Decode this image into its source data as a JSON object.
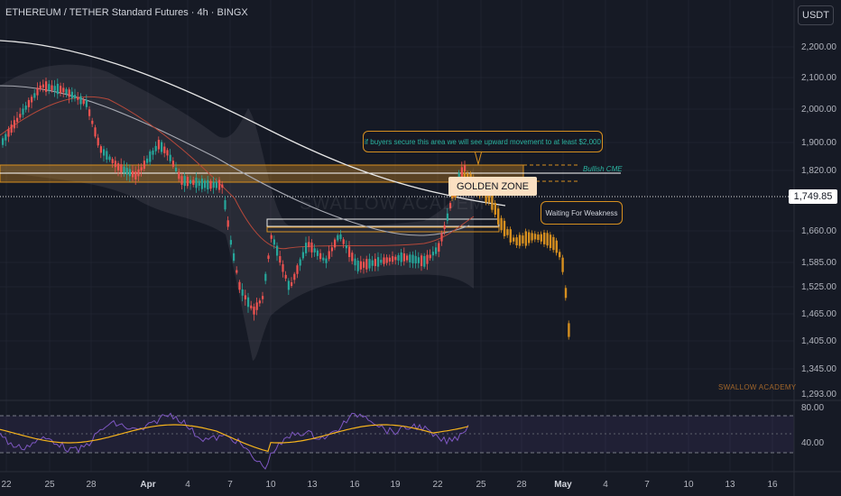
{
  "header": {
    "title": "ETHEREUM / TETHER Standard Futures · 4h · BINGX",
    "currency_button": "USDT"
  },
  "price_axis": {
    "ticks": [
      "2,200.00",
      "2,100.00",
      "2,000.00",
      "1,900.00",
      "1,820.00",
      "1,660.00",
      "1,585.00",
      "1,525.00",
      "1,465.00",
      "1,405.00",
      "1,345.00",
      "1,293.00"
    ],
    "current_price": "1,749.85"
  },
  "rsi_axis": {
    "ticks": [
      "80.00",
      "40.00"
    ]
  },
  "time_axis": {
    "ticks": [
      "22",
      "25",
      "28",
      "Apr",
      "4",
      "7",
      "10",
      "13",
      "16",
      "19",
      "22",
      "25",
      "28",
      "May",
      "4",
      "7",
      "10",
      "13",
      "16"
    ],
    "bold": [
      "Apr",
      "May"
    ]
  },
  "annotations": {
    "buyers_note": "if buyers secure this area we will see upward movement to at least $2,000",
    "golden_zone": "GOLDEN ZONE",
    "bullish_cme": "Bullish CME",
    "waiting": "Waiting For Weakness",
    "watermark": "SWALLOW ACADEMY",
    "brand": "SWALLOW ACADEMY"
  },
  "colors": {
    "background": "#161a25",
    "up_candle": "#26a69a",
    "down_candle": "#ef5350",
    "projection": "#d68f1f",
    "golden_zone": "#fbe0c2",
    "rsi_line": "#7e57c2",
    "rsi_ma": "#f5b31c"
  }
}
